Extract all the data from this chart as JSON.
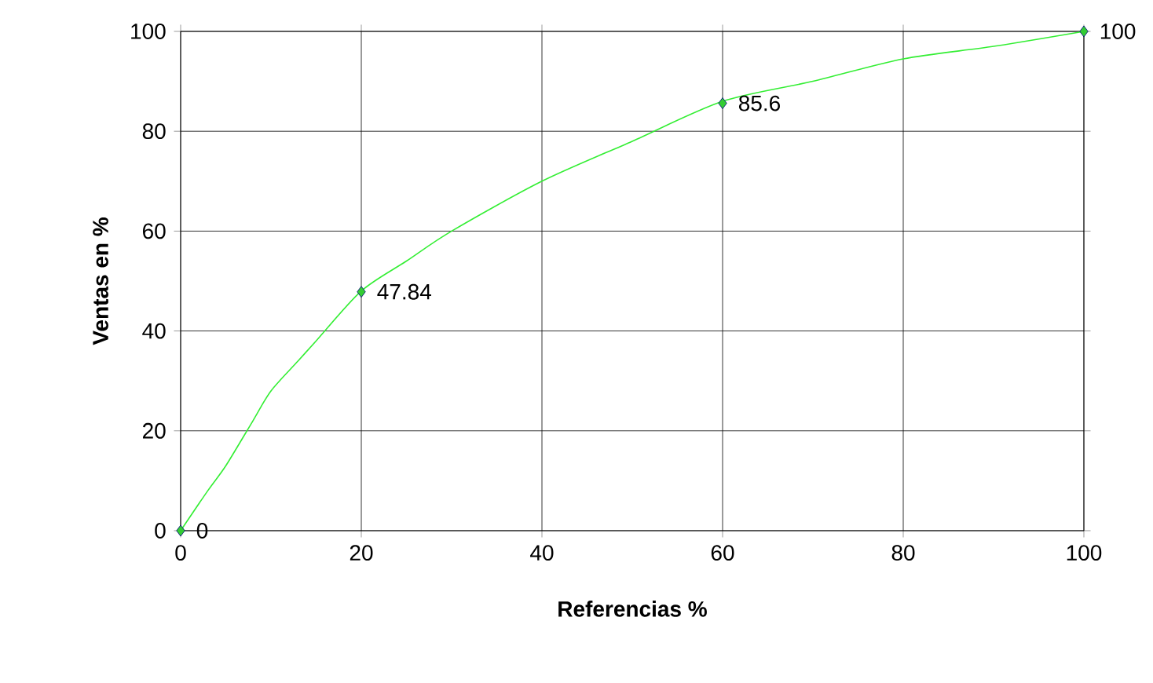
{
  "chart_data": {
    "type": "line",
    "xlabel": "Referencias %",
    "ylabel": "Ventas en %",
    "xlim": [
      0,
      100
    ],
    "ylim": [
      0,
      100
    ],
    "xticks": [
      0,
      20,
      40,
      60,
      80,
      100
    ],
    "yticks": [
      0,
      20,
      40,
      60,
      80,
      100
    ],
    "grid": true,
    "series": [
      {
        "color": "#33ee33",
        "marker": "none",
        "x": [
          0,
          3,
          5,
          8,
          10,
          13,
          15,
          20,
          25,
          30,
          40,
          50,
          60,
          70,
          80,
          90,
          100
        ],
        "values": [
          0,
          8,
          13,
          22,
          28,
          34,
          38,
          48,
          54,
          60,
          70,
          78,
          86,
          90,
          94.5,
          97,
          100
        ]
      },
      {
        "type": "scatter",
        "color": "#33cc33",
        "marker": "diamond",
        "x": [
          0,
          20,
          60,
          100
        ],
        "values": [
          0,
          47.84,
          85.6,
          100
        ],
        "value_labels": [
          "0",
          "47.84",
          "85.6",
          "100"
        ]
      }
    ]
  }
}
